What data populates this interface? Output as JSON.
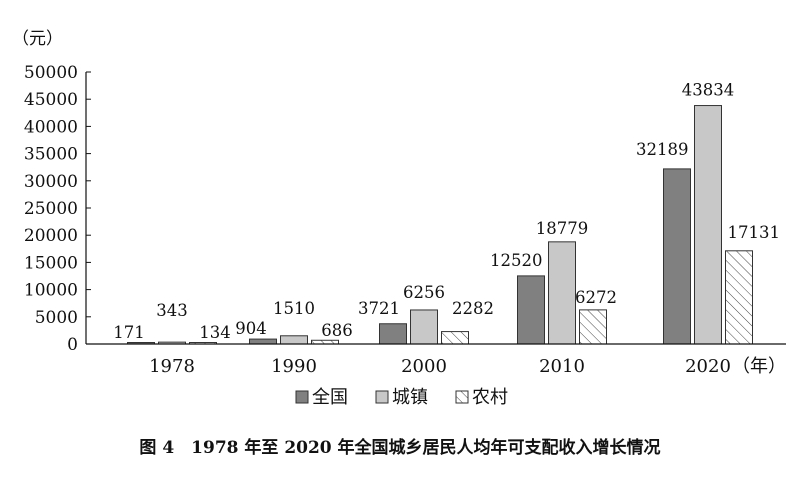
{
  "chart_data": {
    "type": "bar",
    "categories": [
      "1978",
      "1990",
      "2000",
      "2010",
      "2020"
    ],
    "series": [
      {
        "name": "全国",
        "values": [
          171,
          904,
          3721,
          12520,
          32189
        ],
        "color": "#808080",
        "pattern": "solid"
      },
      {
        "name": "城镇",
        "values": [
          343,
          1510,
          6256,
          18779,
          43834
        ],
        "color": "#c8c8c8",
        "pattern": "solid"
      },
      {
        "name": "农村",
        "values": [
          134,
          686,
          2282,
          6272,
          17131
        ],
        "color": "#ffffff",
        "pattern": "hatched"
      }
    ],
    "data_labels": [
      [
        "171",
        "904",
        "3721",
        "12520",
        "32189"
      ],
      [
        "343",
        "1510",
        "6256",
        "18779",
        "43834"
      ],
      [
        "134",
        "686",
        "2282",
        "6272",
        "17131"
      ]
    ],
    "y_ticks": [
      "0",
      "5000",
      "10000",
      "15000",
      "20000",
      "25000",
      "30000",
      "35000",
      "40000",
      "45000",
      "50000"
    ],
    "ylim": [
      0,
      50000
    ],
    "y_unit": "（元）",
    "x_unit": "（年）",
    "grid": false,
    "legend_position": "bottom"
  },
  "caption": "图 4　1978 年至 2020 年全国城乡居民人均年可支配收入增长情况"
}
